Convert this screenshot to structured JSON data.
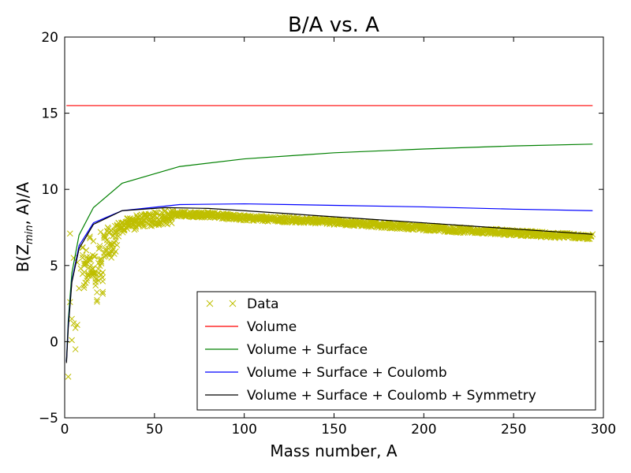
{
  "chart_data": {
    "type": "line",
    "title": "B/A vs. A",
    "xlabel": "Mass number, A",
    "ylabel_parts": {
      "pre": "B(Z",
      "sub": "min",
      "post": ", A)/A"
    },
    "xlim": [
      0,
      300
    ],
    "ylim": [
      -5,
      20
    ],
    "xticks": [
      0,
      50,
      100,
      150,
      200,
      250,
      300
    ],
    "yticks": [
      -5,
      0,
      5,
      10,
      15,
      20
    ],
    "xtick_labels": [
      "0",
      "50",
      "100",
      "150",
      "200",
      "250",
      "300"
    ],
    "ytick_labels": [
      "−5",
      "0",
      "5",
      "10",
      "15",
      "20"
    ],
    "grid": false,
    "legend_position": "lower-right",
    "series": [
      {
        "name": "Data",
        "kind": "scatter",
        "marker": "x",
        "color": "#bfbf00",
        "sample_points": [
          [
            2,
            -2.3
          ],
          [
            3,
            7.1
          ],
          [
            3,
            2.6
          ],
          [
            4,
            1.5
          ],
          [
            4,
            0.1
          ],
          [
            5,
            5.5
          ],
          [
            5,
            1.2
          ],
          [
            6,
            0.9
          ],
          [
            6,
            -0.5
          ],
          [
            7,
            1.1
          ],
          [
            7,
            5.2
          ],
          [
            8,
            3.5
          ],
          [
            9,
            4.8
          ],
          [
            10,
            6.2
          ],
          [
            11,
            5.0
          ],
          [
            12,
            6.0
          ],
          [
            13,
            5.4
          ],
          [
            14,
            6.9
          ],
          [
            15,
            4.7
          ],
          [
            16,
            6.6
          ],
          [
            17,
            5.6
          ],
          [
            18,
            4.4
          ],
          [
            19,
            6.1
          ],
          [
            20,
            7.2
          ],
          [
            21,
            4.2
          ],
          [
            22,
            7.0
          ],
          [
            24,
            7.5
          ],
          [
            26,
            7.3
          ],
          [
            28,
            7.6
          ],
          [
            30,
            7.8
          ],
          [
            35,
            8.1
          ],
          [
            40,
            8.3
          ],
          [
            45,
            8.4
          ],
          [
            50,
            8.5
          ],
          [
            56,
            8.6
          ],
          [
            60,
            8.6
          ],
          [
            70,
            8.5
          ],
          [
            80,
            8.5
          ],
          [
            90,
            8.4
          ],
          [
            100,
            8.3
          ],
          [
            120,
            8.2
          ],
          [
            140,
            8.1
          ],
          [
            160,
            7.95
          ],
          [
            180,
            7.8
          ],
          [
            200,
            7.65
          ],
          [
            220,
            7.5
          ],
          [
            240,
            7.4
          ],
          [
            260,
            7.25
          ],
          [
            280,
            7.12
          ],
          [
            294,
            7.05
          ]
        ]
      },
      {
        "name": "Volume",
        "kind": "line",
        "color": "#ff0000",
        "x": [
          1,
          294
        ],
        "y": [
          15.5,
          15.5
        ]
      },
      {
        "name": "Volume + Surface",
        "kind": "line",
        "color": "#008000",
        "x": [
          1,
          2,
          4,
          8,
          16,
          32,
          64,
          100,
          150,
          200,
          250,
          294
        ],
        "y": [
          -1.3,
          1.4,
          4.5,
          7.0,
          8.8,
          10.4,
          11.5,
          12.0,
          12.4,
          12.65,
          12.85,
          12.97
        ]
      },
      {
        "name": "Volume + Surface + Coulomb",
        "kind": "line",
        "color": "#0000ff",
        "x": [
          1,
          2,
          4,
          8,
          16,
          32,
          64,
          100,
          150,
          200,
          250,
          294
        ],
        "y": [
          -1.3,
          1.1,
          4.0,
          6.3,
          7.8,
          8.6,
          9.0,
          9.05,
          8.95,
          8.85,
          8.7,
          8.6
        ]
      },
      {
        "name": "Volume + Surface + Coulomb + Symmetry",
        "kind": "line",
        "color": "#000000",
        "x": [
          1,
          2,
          4,
          8,
          16,
          32,
          56,
          80,
          100,
          150,
          200,
          250,
          294
        ],
        "y": [
          -1.4,
          0.9,
          3.9,
          6.1,
          7.7,
          8.6,
          8.8,
          8.75,
          8.6,
          8.2,
          7.8,
          7.4,
          7.05
        ]
      }
    ]
  }
}
